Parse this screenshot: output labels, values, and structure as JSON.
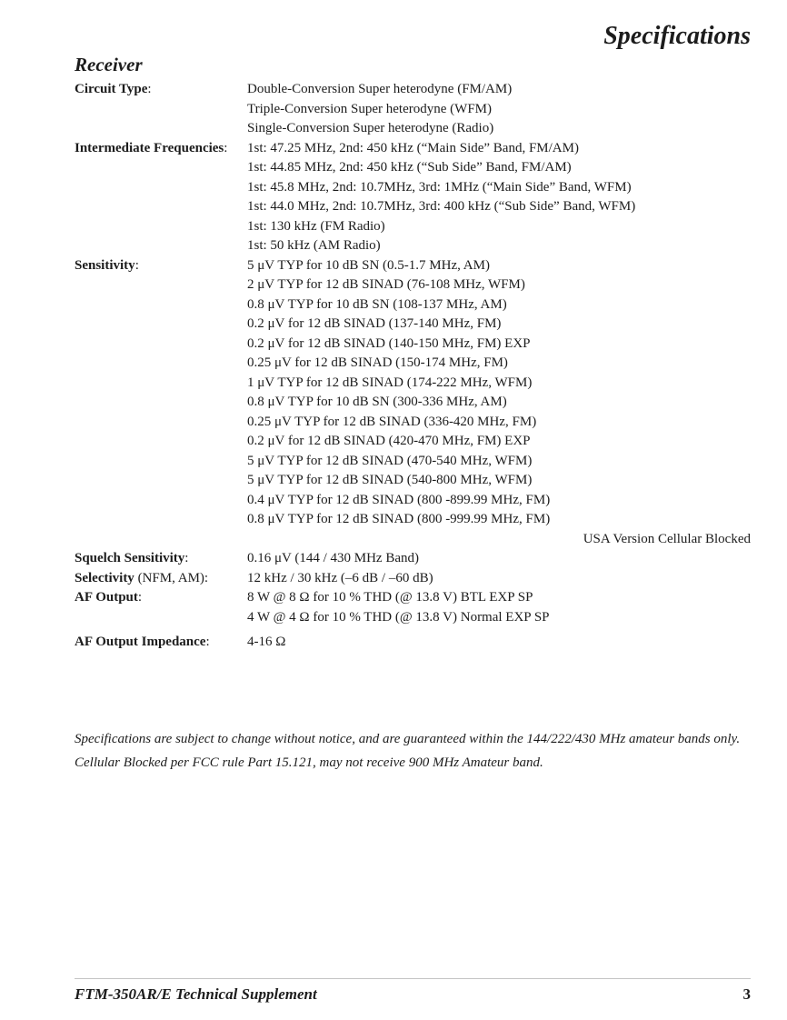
{
  "header": {
    "title": "Specifications"
  },
  "section": {
    "heading": "Receiver"
  },
  "specs": {
    "rows": [
      {
        "label_bold": "Circuit Type",
        "label_rest": ":",
        "values": [
          "Double-Conversion Super heterodyne (FM/AM)",
          "Triple-Conversion Super heterodyne (WFM)",
          "Single-Conversion Super heterodyne (Radio)"
        ]
      },
      {
        "label_bold": "Intermediate Frequencies",
        "label_rest": ":",
        "values": [
          "1st: 47.25 MHz, 2nd: 450 kHz (“Main Side” Band, FM/AM)",
          "1st: 44.85 MHz, 2nd: 450 kHz (“Sub Side” Band, FM/AM)",
          "1st: 45.8 MHz, 2nd: 10.7MHz, 3rd: 1MHz (“Main Side” Band, WFM)",
          "1st: 44.0 MHz, 2nd: 10.7MHz, 3rd: 400 kHz (“Sub Side” Band, WFM)",
          "1st: 130 kHz (FM Radio)",
          "1st: 50 kHz (AM Radio)"
        ]
      },
      {
        "label_bold": "Sensitivity",
        "label_rest": ":",
        "values": [
          "5 μV TYP for 10 dB SN (0.5-1.7 MHz, AM)",
          "2 μV TYP for 12 dB SINAD (76-108 MHz, WFM)",
          "0.8 μV TYP for 10 dB SN (108-137 MHz, AM)",
          "0.2 μV for 12 dB SINAD (137-140 MHz, FM)",
          "0.2 μV for 12 dB SINAD (140-150 MHz, FM) EXP",
          "0.25 μV for 12 dB SINAD (150-174 MHz, FM)",
          "1 μV TYP for 12 dB SINAD (174-222 MHz, WFM)",
          "0.8 μV TYP for 10 dB SN (300-336 MHz, AM)",
          "0.25 μV TYP for 12 dB SINAD (336-420 MHz, FM)",
          "0.2 μV for 12 dB SINAD (420-470 MHz, FM) EXP",
          "5 μV TYP for 12 dB SINAD (470-540 MHz, WFM)",
          "5 μV TYP for 12 dB SINAD (540-800 MHz, WFM)",
          "0.4 μV TYP for 12 dB SINAD (800 -899.99 MHz, FM)",
          "0.8 μV TYP for 12 dB SINAD (800 -999.99 MHz, FM)"
        ]
      },
      {
        "label_bold": "Squelch Sensitivity",
        "label_rest": ":",
        "values": [
          "0.16 μV (144 / 430 MHz Band)"
        ]
      },
      {
        "label_bold": "Selectivity",
        "label_rest": " (NFM, AM):",
        "values": [
          "12 kHz / 30 kHz (–6 dB / –60 dB)"
        ]
      },
      {
        "label_bold": "AF Output",
        "label_rest": ":",
        "values": [
          "8 W @ 8 Ω for 10 % THD (@ 13.8 V) BTL EXP SP",
          "4 W @ 4 Ω for 10 % THD (@ 13.8 V) Normal EXP SP"
        ]
      },
      {
        "label_bold": "AF Output Impedance",
        "label_rest": ":",
        "values": [
          "4-16 Ω"
        ]
      }
    ],
    "usa_note": "USA Version Cellular Blocked"
  },
  "notes": [
    "Specifications are subject to change without notice, and are guaranteed within the 144/222/430 MHz amateur bands only.",
    "Cellular Blocked per FCC rule Part 15.121, may not receive 900 MHz Amateur band."
  ],
  "footer": {
    "left": "FTM-350AR/E Technical Supplement",
    "page_number": "3"
  }
}
